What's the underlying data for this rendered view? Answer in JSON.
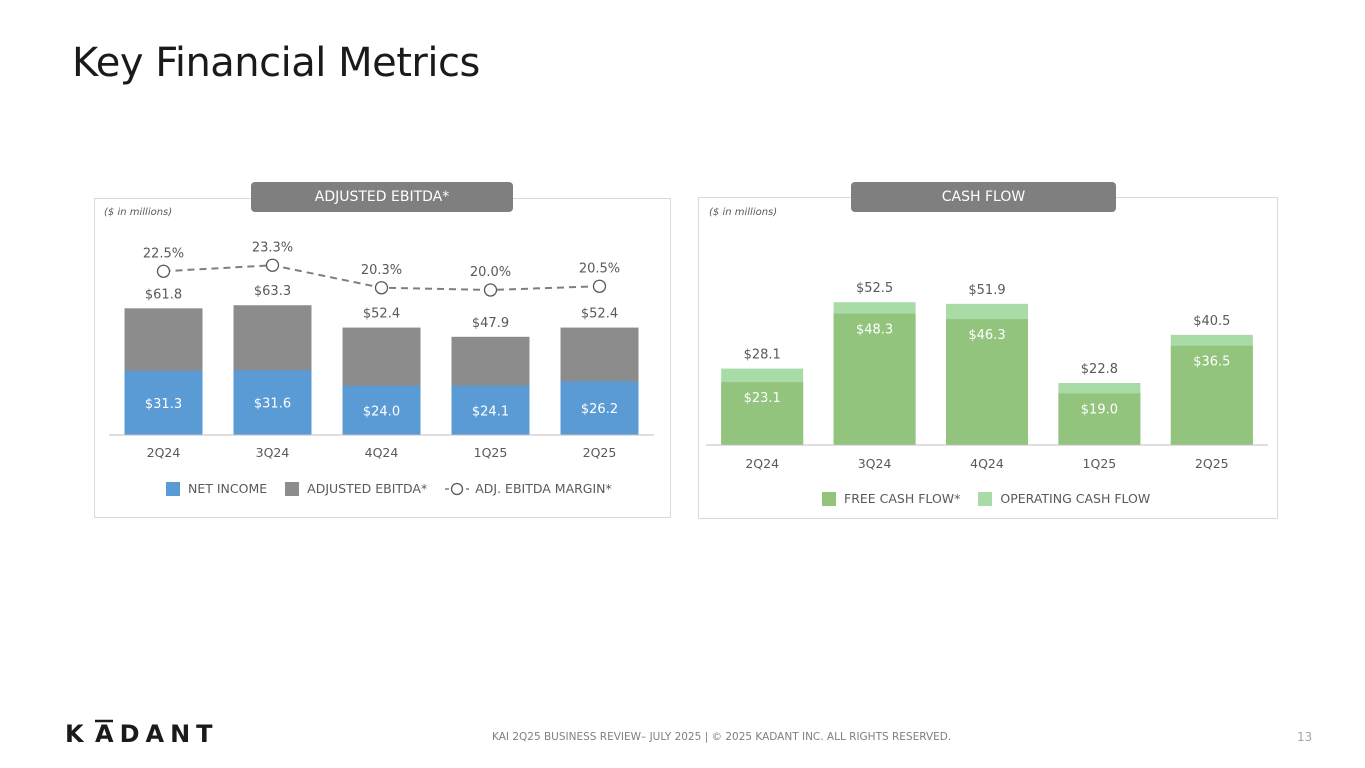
{
  "title": "Key Financial Metrics",
  "footer_text": "KAI 2Q25 BUSINESS REVIEW– JULY 2025  |  © 2025 KADANT INC. ALL RIGHTS RESERVED.",
  "page_number": "13",
  "logo": {
    "text": "KADANT"
  },
  "colors": {
    "net_income": "#5b9bd5",
    "adjusted_ebitda": "#8c8c8c",
    "margin_line": "#7f7f7f",
    "free_cash_flow": "#93c47d",
    "operating_cash_flow": "#a9dba6",
    "pill": "#7f7f7f"
  },
  "chart_data": [
    {
      "type": "bar",
      "title": "ADJUSTED EBITDA*",
      "units_note": "($ in millions)",
      "categories": [
        "2Q24",
        "3Q24",
        "4Q24",
        "1Q25",
        "2Q25"
      ],
      "series": [
        {
          "name": "NET INCOME",
          "values": [
            31.3,
            31.6,
            24.0,
            24.1,
            26.2
          ],
          "labels": [
            "$31.3",
            "$31.6",
            "$24.0",
            "$24.1",
            "$26.2"
          ]
        },
        {
          "name": "ADJUSTED EBITDA*",
          "values": [
            61.8,
            63.3,
            52.4,
            47.9,
            52.4
          ],
          "labels": [
            "$61.8",
            "$63.3",
            "$52.4",
            "$47.9",
            "$52.4"
          ]
        },
        {
          "name": "ADJ. EBITDA MARGIN*",
          "type": "line",
          "values": [
            22.5,
            23.3,
            20.3,
            20.0,
            20.5
          ],
          "labels": [
            "22.5%",
            "23.3%",
            "20.3%",
            "20.0%",
            "20.5%"
          ]
        }
      ],
      "ylim": [
        0,
        70
      ],
      "margin_ylim": [
        12,
        26
      ],
      "legend": "bottom",
      "grid": false
    },
    {
      "type": "bar",
      "title": "CASH FLOW",
      "units_note": "($ in millions)",
      "categories": [
        "2Q24",
        "3Q24",
        "4Q24",
        "1Q25",
        "2Q25"
      ],
      "series": [
        {
          "name": "FREE CASH FLOW*",
          "values": [
            23.1,
            48.3,
            46.3,
            19.0,
            36.5
          ],
          "labels": [
            "$23.1",
            "$48.3",
            "$46.3",
            "$19.0",
            "$36.5"
          ]
        },
        {
          "name": "OPERATING CASH FLOW",
          "values": [
            28.1,
            52.5,
            51.9,
            22.8,
            40.5
          ],
          "labels": [
            "$28.1",
            "$52.5",
            "$51.9",
            "$22.8",
            "$40.5"
          ]
        }
      ],
      "ylim": [
        0,
        70
      ],
      "legend": "bottom",
      "grid": false
    }
  ]
}
